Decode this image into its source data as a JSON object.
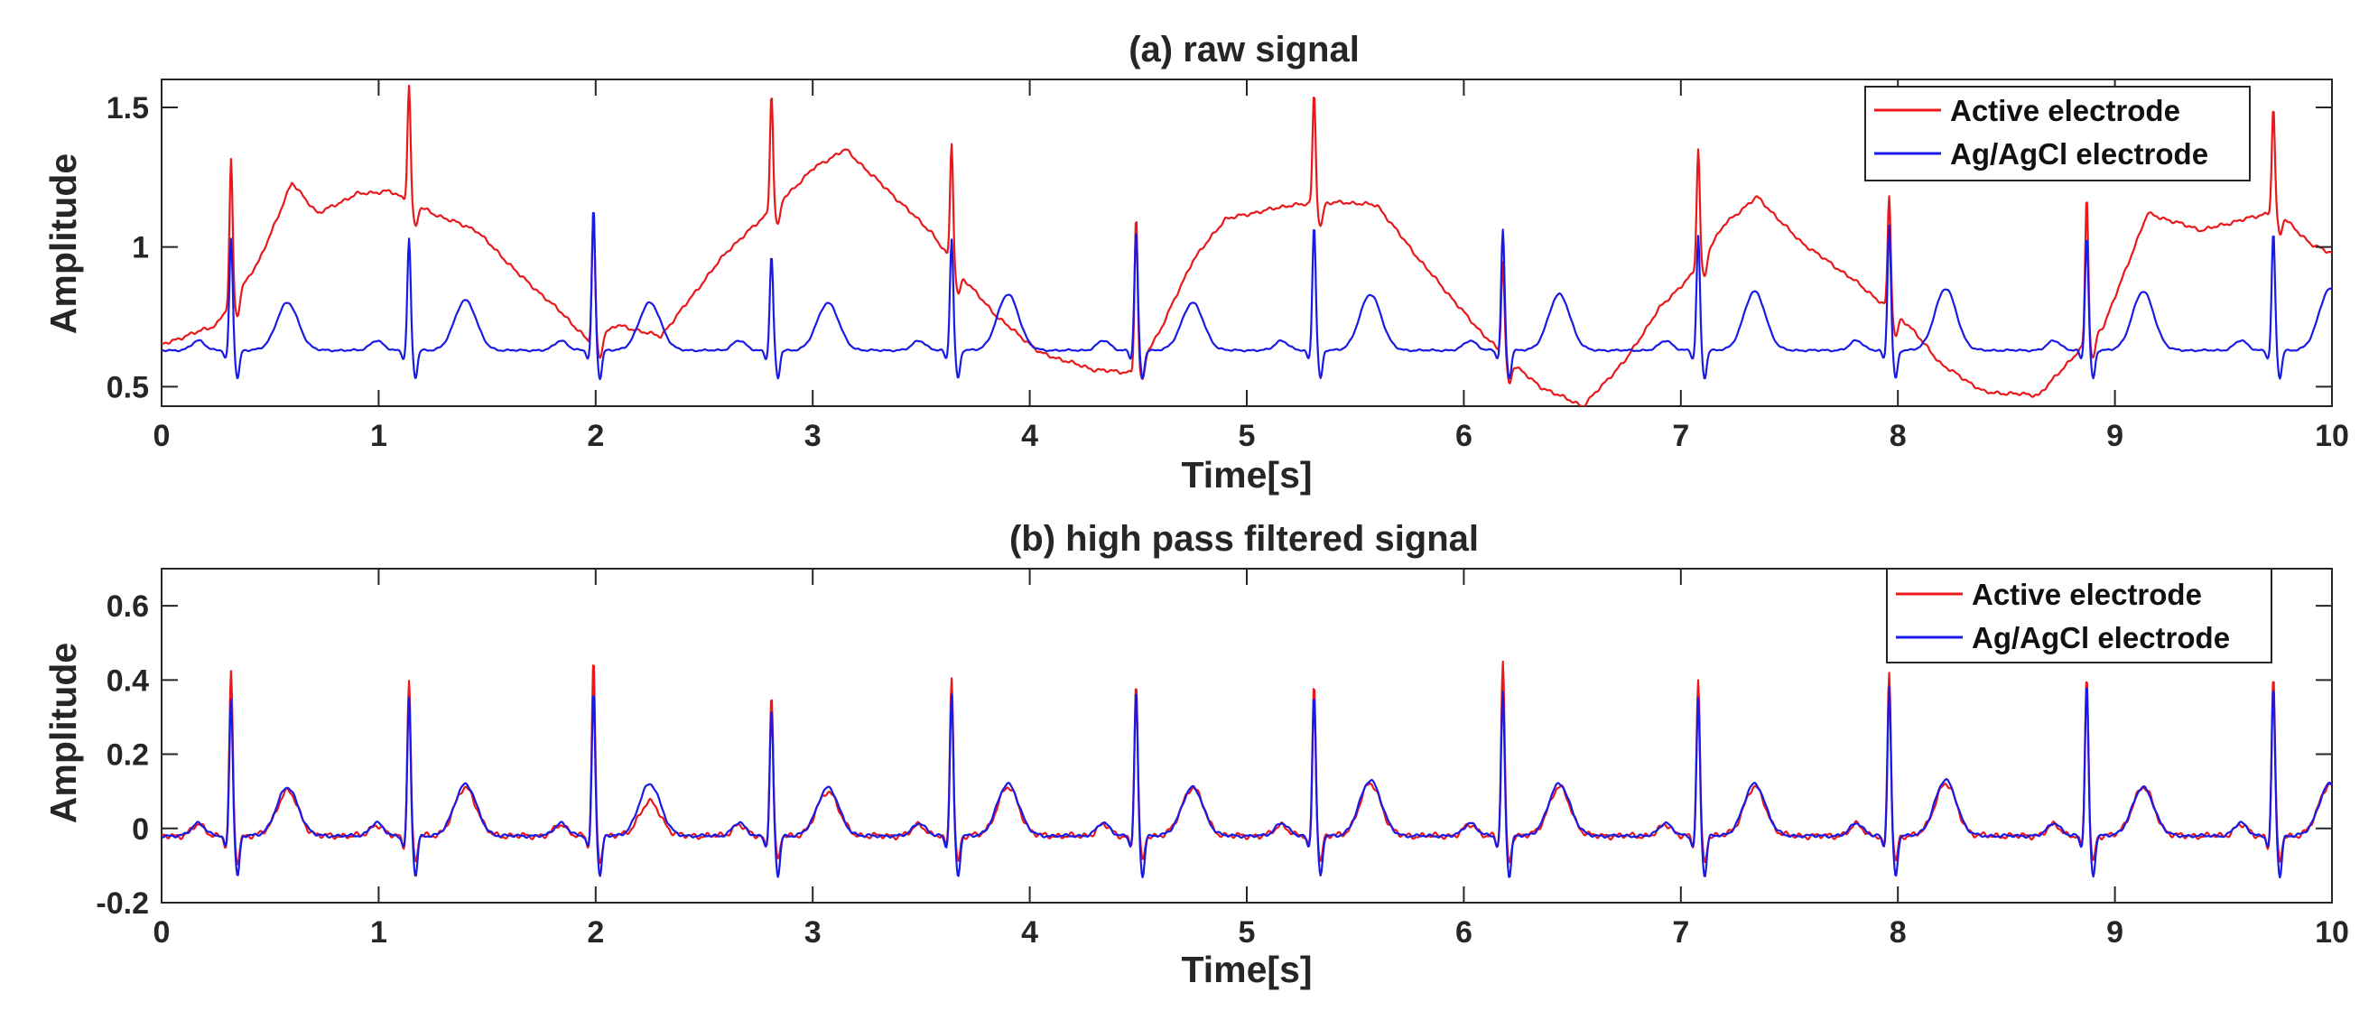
{
  "chart_data": [
    {
      "type": "line",
      "id": "a",
      "title": "(a) raw signal",
      "xlabel": "Time[s]",
      "ylabel": "Amplitude",
      "xlim": [
        0,
        10
      ],
      "ylim": [
        0.43,
        1.6
      ],
      "xticks": [
        0,
        1,
        2,
        3,
        4,
        5,
        6,
        7,
        8,
        9,
        10
      ],
      "yticks": [
        0.5,
        1,
        1.5
      ],
      "ytick_labels": [
        "0.5",
        "1",
        "1.5"
      ],
      "legend_position": "top-right",
      "series": [
        {
          "name": "Active electrode",
          "color": "#e8181b",
          "baseline": {
            "t": [
              0.0,
              0.25,
              0.45,
              0.6,
              0.72,
              0.9,
              1.05,
              1.25,
              1.45,
              1.65,
              1.85,
              1.97,
              2.1,
              2.3,
              2.6,
              2.9,
              3.0,
              3.15,
              3.35,
              3.55,
              3.68,
              3.85,
              4.05,
              4.3,
              4.48,
              4.6,
              4.75,
              4.9,
              5.2,
              5.45,
              5.6,
              5.8,
              6.05,
              6.2,
              6.35,
              6.55,
              6.75,
              6.9,
              7.05,
              7.2,
              7.35,
              7.55,
              7.8,
              8.05,
              8.2,
              8.4,
              8.65,
              8.8,
              8.95,
              9.15,
              9.4,
              9.6,
              9.75,
              9.9,
              10.0
            ],
            "v": [
              0.65,
              0.72,
              0.95,
              1.23,
              1.12,
              1.19,
              1.2,
              1.12,
              1.06,
              0.9,
              0.76,
              0.66,
              0.72,
              0.68,
              0.98,
              1.2,
              1.28,
              1.35,
              1.2,
              1.05,
              0.9,
              0.75,
              0.62,
              0.56,
              0.55,
              0.7,
              0.95,
              1.1,
              1.15,
              1.16,
              1.15,
              0.95,
              0.72,
              0.6,
              0.5,
              0.43,
              0.6,
              0.78,
              0.9,
              1.08,
              1.18,
              1.02,
              0.88,
              0.72,
              0.58,
              0.48,
              0.47,
              0.6,
              0.72,
              1.12,
              1.06,
              1.1,
              1.13,
              1.01,
              0.98
            ]
          },
          "spikes_t": [
            0.32,
            1.14,
            1.99,
            2.81,
            3.64,
            4.49,
            5.31,
            6.18,
            7.08,
            7.96,
            8.87,
            9.73
          ],
          "spikes_v": [
            1.31,
            1.58,
            1.13,
            1.55,
            1.37,
            1.11,
            1.55,
            0.95,
            1.35,
            1.18,
            1.18,
            1.5
          ]
        },
        {
          "name": "Ag/AgCl electrode",
          "color": "#1a1ae6",
          "baseline_level": 0.63,
          "beats_t": [
            0.32,
            1.14,
            1.99,
            2.81,
            3.64,
            4.49,
            5.31,
            6.18,
            7.08,
            7.96,
            8.87,
            9.73
          ],
          "r_peaks": [
            1.03,
            1.03,
            1.14,
            0.97,
            1.03,
            1.06,
            1.08,
            1.06,
            1.04,
            1.08,
            1.04,
            1.05
          ],
          "t_wave_peaks": [
            0.8,
            0.81,
            0.8,
            0.8,
            0.83,
            0.8,
            0.83,
            0.83,
            0.84,
            0.85,
            0.84,
            0.85
          ]
        }
      ]
    },
    {
      "type": "line",
      "id": "b",
      "title": "(b) high pass filtered signal",
      "xlabel": "Time[s]",
      "ylabel": "Amplitude",
      "xlim": [
        0,
        10
      ],
      "ylim": [
        -0.2,
        0.7
      ],
      "xticks": [
        0,
        1,
        2,
        3,
        4,
        5,
        6,
        7,
        8,
        9,
        10
      ],
      "yticks": [
        -0.2,
        0,
        0.2,
        0.4,
        0.6
      ],
      "ytick_labels": [
        "-0.2",
        "0",
        "0.2",
        "0.4",
        "0.6"
      ],
      "legend_position": "top-right",
      "series": [
        {
          "name": "Active electrode",
          "color": "#e8181b",
          "baseline_level": -0.02,
          "beats_t": [
            0.32,
            1.14,
            1.99,
            2.81,
            3.64,
            4.49,
            5.31,
            6.18,
            7.08,
            7.96,
            8.87,
            9.73
          ],
          "r_peaks": [
            0.42,
            0.4,
            0.45,
            0.36,
            0.41,
            0.39,
            0.39,
            0.45,
            0.4,
            0.42,
            0.41,
            0.41
          ],
          "t_wave_peaks": [
            0.1,
            0.11,
            0.07,
            0.1,
            0.11,
            0.11,
            0.12,
            0.11,
            0.11,
            0.12,
            0.11,
            0.12
          ]
        },
        {
          "name": "Ag/AgCl electrode",
          "color": "#1a1ae6",
          "baseline_level": -0.02,
          "beats_t": [
            0.32,
            1.14,
            1.99,
            2.81,
            3.64,
            4.49,
            5.31,
            6.18,
            7.08,
            7.96,
            8.87,
            9.73
          ],
          "r_peaks": [
            0.35,
            0.35,
            0.37,
            0.32,
            0.36,
            0.37,
            0.36,
            0.37,
            0.35,
            0.38,
            0.39,
            0.38
          ],
          "t_wave_peaks": [
            0.11,
            0.12,
            0.12,
            0.11,
            0.12,
            0.11,
            0.13,
            0.12,
            0.12,
            0.13,
            0.11,
            0.12
          ]
        }
      ]
    }
  ]
}
